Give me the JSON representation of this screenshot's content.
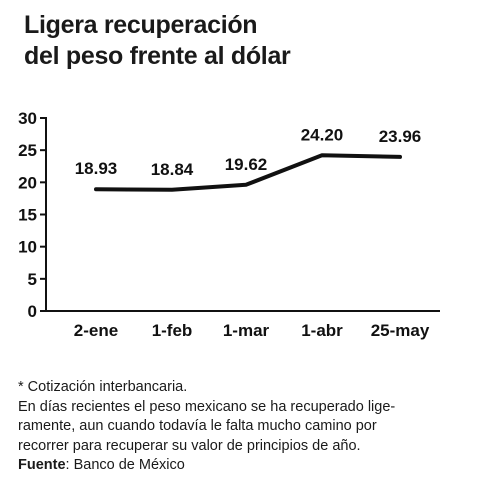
{
  "title_lines": [
    "Ligera recuperación",
    "del peso frente al dólar"
  ],
  "chart_data": {
    "type": "line",
    "title": "Ligera recuperación del peso frente al dólar",
    "categories": [
      "2-ene",
      "1-feb",
      "1-mar",
      "1-abr",
      "25-may"
    ],
    "series": [
      {
        "values": [
          18.93,
          18.84,
          19.62,
          24.2,
          23.96
        ],
        "data_labels": [
          "18.93",
          "18.84",
          "19.62",
          "24.20",
          "23.96"
        ]
      }
    ],
    "ylim": [
      0,
      30
    ],
    "yticks": [
      0,
      5,
      10,
      15,
      20,
      25,
      30
    ],
    "grid": false,
    "legend": "none",
    "line_color": "#111111"
  },
  "notes": {
    "footnote": "* Cotización interbancaria.",
    "description_lines": [
      "En días recientes el peso mexicano se ha recuperado lige-",
      "ramente, aun cuando todavía le falta mucho camino por",
      "recorrer para recuperar su valor de principios de año."
    ],
    "source_label": "Fuente",
    "source_text": ": Banco de México"
  }
}
